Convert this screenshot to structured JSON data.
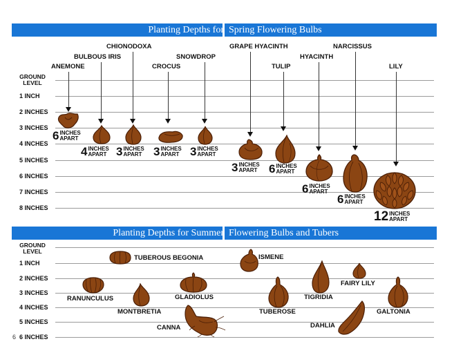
{
  "spring": {
    "title_left": "Planting Depths for",
    "title_right": "Spring Flowering Bulbs",
    "ground_level": [
      "GROUND",
      "LEVEL"
    ],
    "depths": [
      "1 INCH",
      "2 INCHES",
      "3 INCHES",
      "4 INCHES",
      "5 INCHES",
      "6 INCHES",
      "7 INCHES",
      "8 INCHES"
    ],
    "bulbs": [
      {
        "name": "ANEMONE",
        "spacing": "6",
        "unit1": "INCHES",
        "unit2": "APART"
      },
      {
        "name": "BULBOUS IRIS",
        "spacing": "4",
        "unit1": "INCHES",
        "unit2": "APART"
      },
      {
        "name": "CHIONODOXA",
        "spacing": "3",
        "unit1": "INCHES",
        "unit2": "APART"
      },
      {
        "name": "CROCUS",
        "spacing": "3",
        "unit1": "INCHES",
        "unit2": "APART"
      },
      {
        "name": "SNOWDROP",
        "spacing": "3",
        "unit1": "INCHES",
        "unit2": "APART"
      },
      {
        "name": "GRAPE HYACINTH",
        "spacing": "3",
        "unit1": "INCHES",
        "unit2": "APART"
      },
      {
        "name": "TULIP",
        "spacing": "6",
        "unit1": "INCHES",
        "unit2": "APART"
      },
      {
        "name": "HYACINTH",
        "spacing": "6",
        "unit1": "INCHES",
        "unit2": "APART"
      },
      {
        "name": "NARCISSUS",
        "spacing": "6",
        "unit1": "INCHES",
        "unit2": "APART"
      },
      {
        "name": "LILY",
        "spacing": "12",
        "unit1": "INCHES",
        "unit2": "APART"
      }
    ]
  },
  "summer": {
    "title_left": "Planting Depths for Summer",
    "title_right": "Flowering Bulbs and Tubers",
    "ground_level": [
      "GROUND",
      "LEVEL"
    ],
    "depths": [
      "1 INCH",
      "2 INCHES",
      "3 INCHES",
      "4 INCHES",
      "5 INCHES",
      "6 INCHES"
    ],
    "bulbs": [
      "TUBEROUS BEGONIA",
      "RANUNCULUS",
      "MONTBRETIA",
      "GLADIOLUS",
      "CANNA",
      "ISMENE",
      "TUBEROSE",
      "TIGRIDIA",
      "FAIRY LILY",
      "DAHLIA",
      "GALTONIA"
    ]
  },
  "page_number": "6",
  "colors": {
    "banner": "#1976d6",
    "bulb": "#8b4513",
    "bulb_dark": "#4a1e06"
  }
}
